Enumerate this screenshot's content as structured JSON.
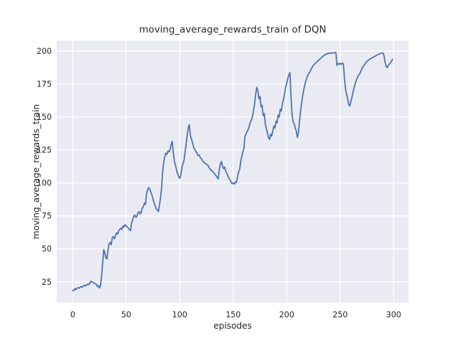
{
  "chart_data": {
    "type": "line",
    "title": "moving_average_rewards_train of DQN",
    "xlabel": "episodes",
    "ylabel": "moving_average_rewards_train",
    "x_ticks": [
      0,
      50,
      100,
      150,
      200,
      250,
      300
    ],
    "y_ticks": [
      25,
      50,
      75,
      100,
      125,
      150,
      175,
      200
    ],
    "xlim": [
      -14.95,
      313.95
    ],
    "ylim": [
      9.3,
      207.7
    ],
    "grid": true,
    "legend_position": "none",
    "style": "seaborn-darkgrid",
    "colors": {
      "line": "#4c72b0",
      "axes_background": "#eaeaf2",
      "gridline": "#ffffff",
      "figure_background": "#ffffff",
      "text": "#262626"
    },
    "series": [
      {
        "name": "moving_average_rewards_train",
        "points": [
          [
            0,
            18.5
          ],
          [
            1,
            18.3
          ],
          [
            2,
            19.8
          ],
          [
            3,
            19.3
          ],
          [
            4,
            20.2
          ],
          [
            5,
            20.7
          ],
          [
            6,
            20.2
          ],
          [
            7,
            21.0
          ],
          [
            8,
            21.5
          ],
          [
            9,
            21.0
          ],
          [
            10,
            22.0
          ],
          [
            11,
            22.4
          ],
          [
            12,
            21.9
          ],
          [
            13,
            22.8
          ],
          [
            14,
            23.3
          ],
          [
            15,
            22.9
          ],
          [
            16,
            24.2
          ],
          [
            17,
            25.5
          ],
          [
            18,
            25.0
          ],
          [
            19,
            24.5
          ],
          [
            20,
            24.1
          ],
          [
            21,
            23.6
          ],
          [
            22,
            23.2
          ],
          [
            23,
            21.5
          ],
          [
            24,
            22.2
          ],
          [
            25,
            20.3
          ],
          [
            26,
            22.5
          ],
          [
            27,
            30.0
          ],
          [
            28,
            40.0
          ],
          [
            29,
            49.5
          ],
          [
            30,
            47.0
          ],
          [
            31,
            43.2
          ],
          [
            32,
            42.5
          ],
          [
            33,
            49.0
          ],
          [
            34,
            54.0
          ],
          [
            35,
            54.9
          ],
          [
            36,
            53.1
          ],
          [
            37,
            58.5
          ],
          [
            38,
            59.4
          ],
          [
            39,
            57.6
          ],
          [
            40,
            60.3
          ],
          [
            41,
            62.1
          ],
          [
            42,
            61.2
          ],
          [
            43,
            63.9
          ],
          [
            44,
            64.8
          ],
          [
            45,
            65.7
          ],
          [
            46,
            64.8
          ],
          [
            47,
            67.5
          ],
          [
            48,
            66.6
          ],
          [
            49,
            68.4
          ],
          [
            50,
            67.5
          ],
          [
            51,
            66.5
          ],
          [
            52,
            65.7
          ],
          [
            53,
            64.5
          ],
          [
            54,
            63.9
          ],
          [
            55,
            69.3
          ],
          [
            56,
            72.0
          ],
          [
            57,
            74.7
          ],
          [
            58,
            75.6
          ],
          [
            59,
            73.8
          ],
          [
            60,
            74.7
          ],
          [
            61,
            77.4
          ],
          [
            62,
            78.3
          ],
          [
            63,
            76.5
          ],
          [
            64,
            77.5
          ],
          [
            65,
            81.0
          ],
          [
            66,
            81.9
          ],
          [
            67,
            84.6
          ],
          [
            68,
            83.7
          ],
          [
            69,
            92.0
          ],
          [
            70,
            94.6
          ],
          [
            71,
            96.4
          ],
          [
            72,
            95.5
          ],
          [
            73,
            93.0
          ],
          [
            74,
            91.0
          ],
          [
            75,
            88.0
          ],
          [
            76,
            85.0
          ],
          [
            77,
            82.8
          ],
          [
            78,
            80.5
          ],
          [
            79,
            79.6
          ],
          [
            80,
            78.3
          ],
          [
            81,
            83.0
          ],
          [
            82,
            88.2
          ],
          [
            83,
            95.4
          ],
          [
            84,
            108.1
          ],
          [
            85,
            115.3
          ],
          [
            86,
            119.8
          ],
          [
            87,
            122.5
          ],
          [
            88,
            121.6
          ],
          [
            89,
            124.3
          ],
          [
            90,
            123.5
          ],
          [
            91,
            125.5
          ],
          [
            92,
            129.0
          ],
          [
            93,
            131.5
          ],
          [
            94,
            123.0
          ],
          [
            95,
            116.0
          ],
          [
            96,
            113.5
          ],
          [
            97,
            110.0
          ],
          [
            98,
            107.0
          ],
          [
            99,
            105.0
          ],
          [
            100,
            103.5
          ],
          [
            101,
            105.5
          ],
          [
            102,
            111.7
          ],
          [
            103,
            114.4
          ],
          [
            104,
            117.1
          ],
          [
            105,
            123.4
          ],
          [
            106,
            129.7
          ],
          [
            107,
            136.0
          ],
          [
            108,
            142.0
          ],
          [
            109,
            144.0
          ],
          [
            110,
            136.0
          ],
          [
            111,
            133.3
          ],
          [
            112,
            130.6
          ],
          [
            113,
            127.0
          ],
          [
            114,
            125.2
          ],
          [
            115,
            124.0
          ],
          [
            116,
            122.8
          ],
          [
            117,
            120.7
          ],
          [
            118,
            121.3
          ],
          [
            119,
            119.5
          ],
          [
            120,
            118.5
          ],
          [
            121,
            117.5
          ],
          [
            122,
            116.2
          ],
          [
            123,
            115.3
          ],
          [
            124,
            114.7
          ],
          [
            125,
            114.0
          ],
          [
            126,
            113.5
          ],
          [
            127,
            112.4
          ],
          [
            128,
            110.8
          ],
          [
            129,
            110.0
          ],
          [
            130,
            109.3
          ],
          [
            131,
            108.4
          ],
          [
            132,
            107.6
          ],
          [
            133,
            106.5
          ],
          [
            134,
            105.4
          ],
          [
            135,
            104.2
          ],
          [
            136,
            103.1
          ],
          [
            137,
            110.0
          ],
          [
            138,
            114.5
          ],
          [
            139,
            116.3
          ],
          [
            140,
            112.6
          ],
          [
            141,
            110.8
          ],
          [
            142,
            112.0
          ],
          [
            143,
            109.0
          ],
          [
            144,
            107.2
          ],
          [
            145,
            105.4
          ],
          [
            146,
            103.6
          ],
          [
            147,
            102.2
          ],
          [
            148,
            100.9
          ],
          [
            149,
            99.4
          ],
          [
            150,
            100.0
          ],
          [
            151,
            99.1
          ],
          [
            152,
            100.9
          ],
          [
            153,
            100.3
          ],
          [
            154,
            104.5
          ],
          [
            155,
            108.1
          ],
          [
            156,
            110.0
          ],
          [
            157,
            116.2
          ],
          [
            158,
            119.8
          ],
          [
            159,
            123.4
          ],
          [
            160,
            126.1
          ],
          [
            161,
            135.1
          ],
          [
            162,
            137.0
          ],
          [
            163,
            139.0
          ],
          [
            164,
            140.5
          ],
          [
            165,
            143.0
          ],
          [
            166,
            146.0
          ],
          [
            167,
            147.7
          ],
          [
            168,
            150.4
          ],
          [
            169,
            154.9
          ],
          [
            170,
            160.0
          ],
          [
            171,
            167.0
          ],
          [
            172,
            172.5
          ],
          [
            173,
            170.3
          ],
          [
            174,
            163.9
          ],
          [
            175,
            165.5
          ],
          [
            176,
            157.6
          ],
          [
            177,
            158.8
          ],
          [
            178,
            151.0
          ],
          [
            179,
            152.5
          ],
          [
            180,
            145.0
          ],
          [
            181,
            141.0
          ],
          [
            182,
            137.8
          ],
          [
            183,
            134.5
          ],
          [
            184,
            133.0
          ],
          [
            185,
            136.9
          ],
          [
            186,
            135.5
          ],
          [
            187,
            139.6
          ],
          [
            188,
            143.2
          ],
          [
            189,
            141.5
          ],
          [
            190,
            146.8
          ],
          [
            191,
            145.5
          ],
          [
            192,
            151.3
          ],
          [
            193,
            150.0
          ],
          [
            194,
            155.8
          ],
          [
            195,
            154.5
          ],
          [
            196,
            160.3
          ],
          [
            197,
            163.0
          ],
          [
            198,
            167.5
          ],
          [
            199,
            172.0
          ],
          [
            200,
            175.6
          ],
          [
            201,
            179.2
          ],
          [
            202,
            181.9
          ],
          [
            203,
            183.5
          ],
          [
            204,
            166.0
          ],
          [
            205,
            152.0
          ],
          [
            206,
            146.0
          ],
          [
            207,
            145.0
          ],
          [
            208,
            141.5
          ],
          [
            209,
            139.5
          ],
          [
            210,
            134.5
          ],
          [
            211,
            138.0
          ],
          [
            212,
            147.0
          ],
          [
            213,
            155.0
          ],
          [
            214,
            161.0
          ],
          [
            215,
            166.5
          ],
          [
            216,
            171.0
          ],
          [
            217,
            174.5
          ],
          [
            218,
            177.5
          ],
          [
            219,
            180.0
          ],
          [
            220,
            182.0
          ],
          [
            222,
            184.5
          ],
          [
            223,
            186.5
          ],
          [
            225,
            189.2
          ],
          [
            227,
            190.9
          ],
          [
            230,
            193.1
          ],
          [
            232,
            194.6
          ],
          [
            234,
            196.0
          ],
          [
            236,
            197.3
          ],
          [
            238,
            198.0
          ],
          [
            241,
            198.4
          ],
          [
            243,
            198.5
          ],
          [
            245,
            198.7
          ],
          [
            246,
            198.7
          ],
          [
            247,
            189.2
          ],
          [
            248,
            190.5
          ],
          [
            249,
            189.8
          ],
          [
            250,
            190.7
          ],
          [
            251,
            189.8
          ],
          [
            252,
            190.9
          ],
          [
            253,
            190.2
          ],
          [
            254,
            179.2
          ],
          [
            255,
            171.1
          ],
          [
            256,
            167.0
          ],
          [
            257,
            163.9
          ],
          [
            258,
            159.4
          ],
          [
            259,
            158.3
          ],
          [
            260,
            161.5
          ],
          [
            261,
            164.7
          ],
          [
            263,
            172.4
          ],
          [
            265,
            177.8
          ],
          [
            267,
            181.5
          ],
          [
            268,
            182.3
          ],
          [
            271,
            187.7
          ],
          [
            273,
            190.0
          ],
          [
            275,
            192.2
          ],
          [
            278,
            194.0
          ],
          [
            280,
            194.9
          ],
          [
            282,
            195.8
          ],
          [
            284,
            196.7
          ],
          [
            286,
            197.5
          ],
          [
            288,
            198.2
          ],
          [
            290,
            198.5
          ],
          [
            291,
            196.4
          ],
          [
            292,
            191.4
          ],
          [
            293,
            188.3
          ],
          [
            294,
            187.4
          ],
          [
            295,
            189.2
          ],
          [
            297,
            190.9
          ],
          [
            298,
            192.4
          ],
          [
            299,
            193.7
          ]
        ]
      }
    ]
  }
}
